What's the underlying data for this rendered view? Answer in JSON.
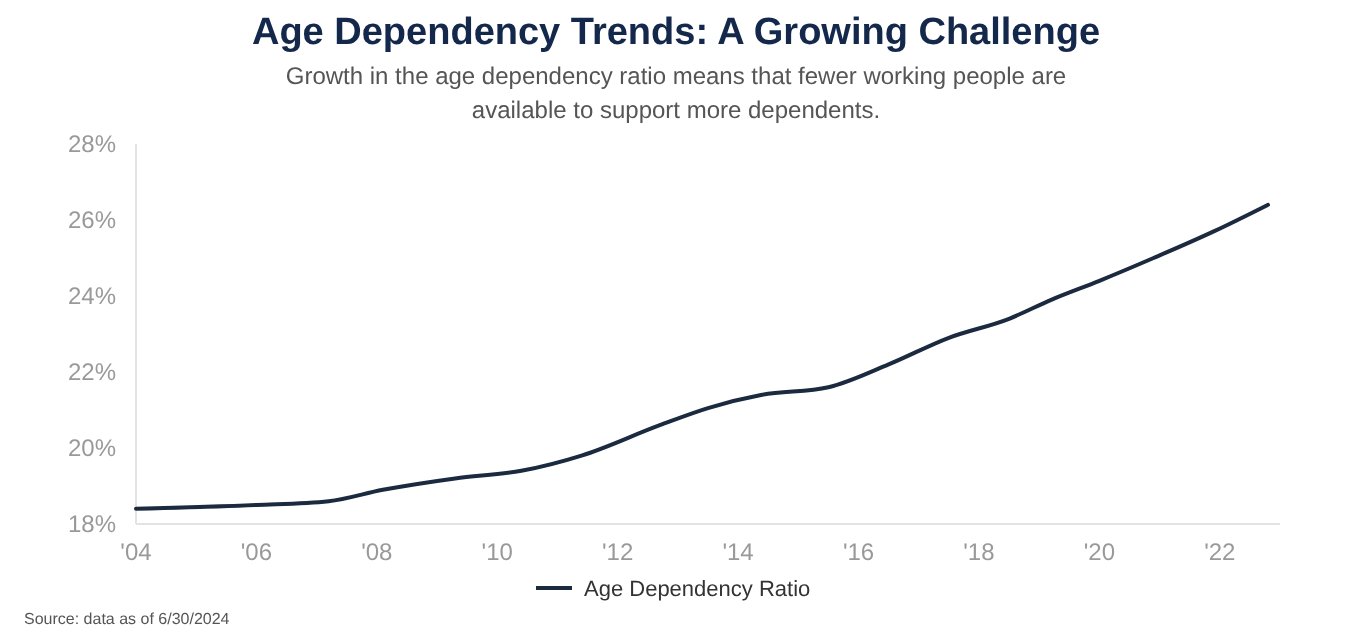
{
  "chart_data": {
    "type": "line",
    "title": "Age Dependency Trends: A Growing Challenge",
    "subtitle": "Growth in the age dependency ratio means that fewer working people are available to support more dependents.",
    "annotations": [
      "Source: data as of 6/30/2024"
    ],
    "x": [
      2004,
      2006,
      2007.2,
      2008.1,
      2009.3,
      2010.4,
      2011.4,
      2012.7,
      2013.5,
      2014.4,
      2015.5,
      2016.5,
      2017.5,
      2018.5,
      2019.2,
      2020,
      2020.9,
      2021.9,
      2022.8
    ],
    "series": [
      {
        "name": "Age Dependency Ratio",
        "color": "#1b2a3f",
        "values": [
          18.4,
          18.5,
          18.6,
          18.9,
          19.2,
          19.4,
          19.8,
          20.6,
          21.05,
          21.4,
          21.6,
          22.2,
          22.9,
          23.4,
          23.9,
          24.4,
          25.0,
          25.7,
          26.4
        ]
      }
    ],
    "xlim": [
      2004,
      2023
    ],
    "xticks": [
      {
        "value": 2004,
        "label": "'04"
      },
      {
        "value": 2006,
        "label": "'06"
      },
      {
        "value": 2008,
        "label": "'08"
      },
      {
        "value": 2010,
        "label": "'10"
      },
      {
        "value": 2012,
        "label": "'12"
      },
      {
        "value": 2014,
        "label": "'14"
      },
      {
        "value": 2016,
        "label": "'16"
      },
      {
        "value": 2018,
        "label": "'18"
      },
      {
        "value": 2020,
        "label": "'20"
      },
      {
        "value": 2022,
        "label": "'22"
      }
    ],
    "ylim": [
      18,
      28
    ],
    "yticks": [
      {
        "value": 18,
        "label": "18%"
      },
      {
        "value": 20,
        "label": "20%"
      },
      {
        "value": 22,
        "label": "22%"
      },
      {
        "value": 24,
        "label": "24%"
      },
      {
        "value": 26,
        "label": "26%"
      },
      {
        "value": 28,
        "label": "28%"
      }
    ],
    "legend": "bottom",
    "marker": "none",
    "line_style": "solid"
  }
}
